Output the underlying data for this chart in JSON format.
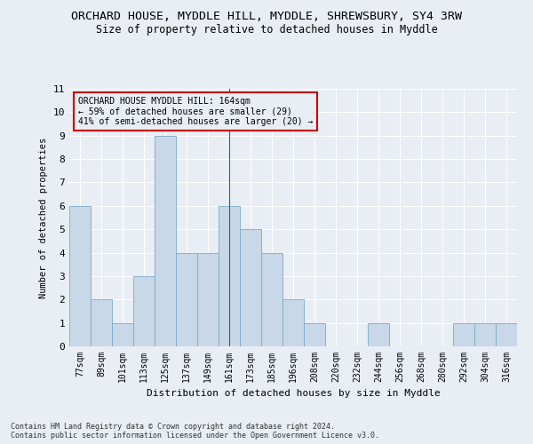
{
  "title": "ORCHARD HOUSE, MYDDLE HILL, MYDDLE, SHREWSBURY, SY4 3RW",
  "subtitle": "Size of property relative to detached houses in Myddle",
  "xlabel": "Distribution of detached houses by size in Myddle",
  "ylabel": "Number of detached properties",
  "categories": [
    "77sqm",
    "89sqm",
    "101sqm",
    "113sqm",
    "125sqm",
    "137sqm",
    "149sqm",
    "161sqm",
    "173sqm",
    "185sqm",
    "196sqm",
    "208sqm",
    "220sqm",
    "232sqm",
    "244sqm",
    "256sqm",
    "268sqm",
    "280sqm",
    "292sqm",
    "304sqm",
    "316sqm"
  ],
  "values": [
    6,
    2,
    1,
    3,
    9,
    4,
    4,
    6,
    5,
    4,
    2,
    1,
    0,
    0,
    1,
    0,
    0,
    0,
    1,
    1,
    1
  ],
  "bar_color": "#c8d8e8",
  "bar_edge_color": "#7aaac8",
  "highlight_index": 7,
  "highlight_line_color": "#555555",
  "annotation_text": "ORCHARD HOUSE MYDDLE HILL: 164sqm\n← 59% of detached houses are smaller (29)\n41% of semi-detached houses are larger (20) →",
  "annotation_box_color": "#cc0000",
  "annotation_text_color": "#000000",
  "ylim": [
    0,
    11
  ],
  "yticks": [
    0,
    1,
    2,
    3,
    4,
    5,
    6,
    7,
    8,
    9,
    10,
    11
  ],
  "footer": "Contains HM Land Registry data © Crown copyright and database right 2024.\nContains public sector information licensed under the Open Government Licence v3.0.",
  "bg_color": "#e8eef4",
  "grid_color": "#ffffff",
  "title_fontsize": 9.5,
  "subtitle_fontsize": 8.5,
  "xlabel_fontsize": 8,
  "ylabel_fontsize": 7.5,
  "tick_fontsize": 7,
  "annotation_fontsize": 7,
  "footer_fontsize": 6
}
